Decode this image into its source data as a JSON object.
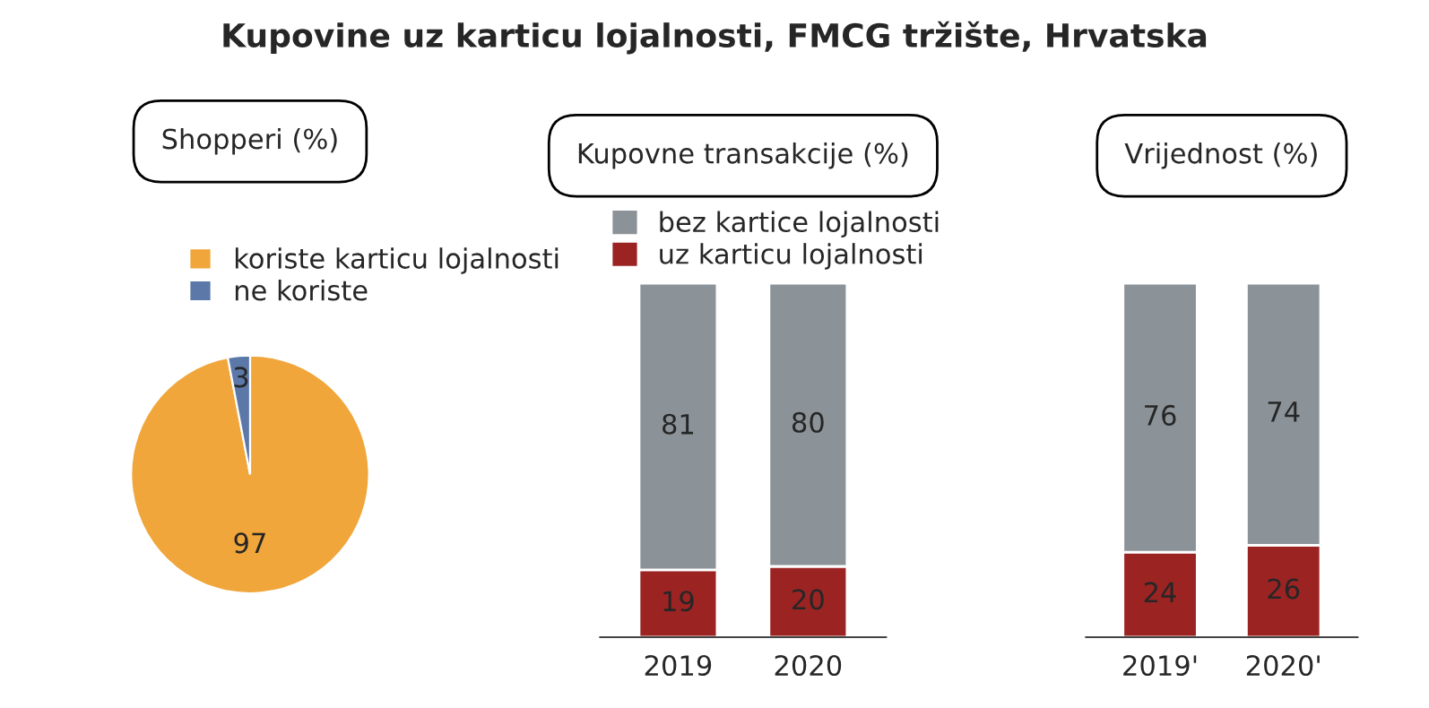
{
  "chart_data": [
    {
      "type": "pie",
      "title": "Kupovine uz karticu lojalnosti, FMCG tržište, Hrvatska",
      "subtitle": "Shopperi (%)",
      "categories": [
        "koriste karticu lojalnosti",
        "ne koriste"
      ],
      "values": [
        97,
        3
      ],
      "colors": [
        "#f0a63a",
        "#5b78a8"
      ],
      "data_labels": true,
      "legend": "top"
    },
    {
      "type": "bar",
      "subtitle": "Kupovne transakcije (%)",
      "categories": [
        "2019",
        "2020"
      ],
      "stacked": true,
      "data_labels": true,
      "legend": "top",
      "series": [
        {
          "name": "uz karticu lojalnosti",
          "color": "#9b2423",
          "values": [
            19,
            20
          ]
        },
        {
          "name": "bez kartice lojalnosti",
          "color": "#8c9398",
          "values": [
            81,
            80
          ]
        }
      ]
    },
    {
      "type": "bar",
      "subtitle": "Vrijednost (%)",
      "categories": [
        "2019'",
        "2020'"
      ],
      "stacked": true,
      "data_labels": true,
      "series": [
        {
          "color": "#9b2423",
          "values": [
            24,
            26
          ]
        },
        {
          "color": "#8c9398",
          "values": [
            76,
            74
          ]
        }
      ]
    }
  ]
}
